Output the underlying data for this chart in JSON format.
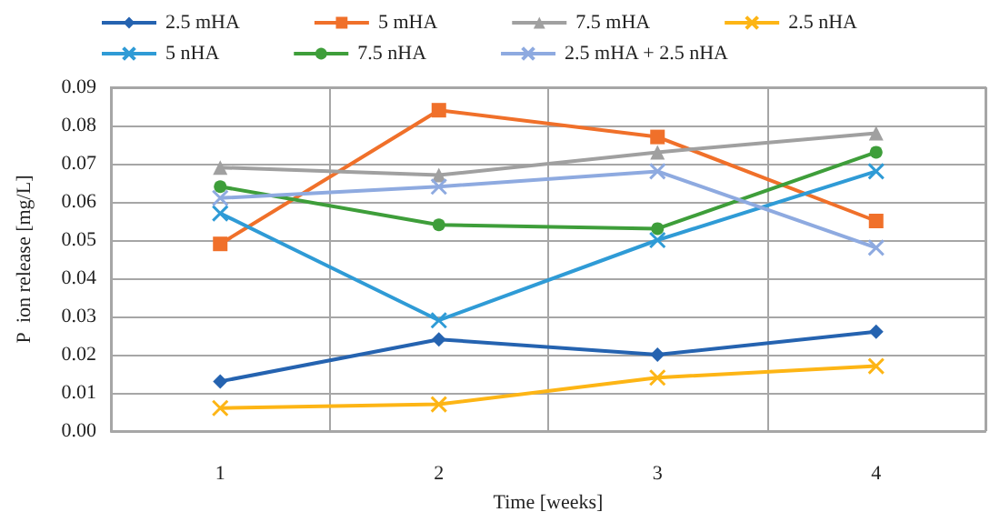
{
  "chart_data": {
    "type": "line",
    "xlabel": "Time [weeks]",
    "ylabel": "P  ion release [mg/L]",
    "categories": [
      "1",
      "2",
      "3",
      "4"
    ],
    "series": [
      {
        "name": "2.5 mHA",
        "color": "#2563b0",
        "marker": "diamond",
        "values": [
          0.013,
          0.024,
          0.02,
          0.026
        ]
      },
      {
        "name": "5 mHA",
        "color": "#f0702a",
        "marker": "square",
        "values": [
          0.049,
          0.084,
          0.077,
          0.055
        ]
      },
      {
        "name": "7.5 mHA",
        "color": "#a0a0a0",
        "marker": "triangle",
        "values": [
          0.069,
          0.067,
          0.073,
          0.078
        ]
      },
      {
        "name": "2.5 nHA",
        "color": "#fdb515",
        "marker": "cross",
        "values": [
          0.006,
          0.007,
          0.014,
          0.017
        ]
      },
      {
        "name": "5 nHA",
        "color": "#2f9bd6",
        "marker": "cross",
        "values": [
          0.057,
          0.029,
          0.05,
          0.068
        ]
      },
      {
        "name": "7.5 nHA",
        "color": "#3e9e3a",
        "marker": "circle",
        "values": [
          0.064,
          0.054,
          0.053,
          0.073
        ]
      },
      {
        "name": "2.5 mHA + 2.5 nHA",
        "color": "#8eaae0",
        "marker": "cross",
        "values": [
          0.061,
          0.064,
          0.068,
          0.048
        ]
      }
    ],
    "ylim": [
      0,
      0.09
    ],
    "yticks": [
      {
        "value": 0,
        "label": "0.00"
      },
      0.01,
      0.02,
      0.03,
      0.04,
      0.05,
      0.06,
      0.07,
      0.08,
      0.09
    ],
    "grid": true,
    "legend": "top"
  }
}
